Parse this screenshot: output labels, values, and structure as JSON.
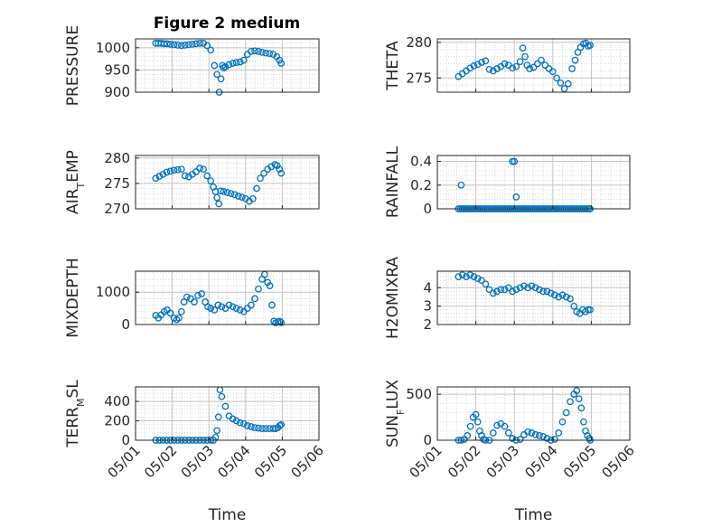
{
  "figure_title": "Figure 2 medium",
  "marker_color": "#0072bd",
  "chart_data": [
    {
      "type": "scatter",
      "ylabel": "PRESSURE",
      "ylabel_parts": [
        {
          "text": "PRESSURE",
          "sub": false
        }
      ],
      "xlabel": "",
      "xlim": [
        0,
        5
      ],
      "ylim": [
        900,
        1020
      ],
      "yticks": [
        900,
        950,
        1000
      ],
      "grid": true,
      "x": [
        0.55,
        0.62,
        0.7,
        0.78,
        0.86,
        0.95,
        1.05,
        1.15,
        1.25,
        1.35,
        1.45,
        1.55,
        1.65,
        1.75,
        1.85,
        1.95,
        2.05,
        2.15,
        2.22,
        2.28,
        2.33,
        2.37,
        2.4,
        2.45,
        2.55,
        2.65,
        2.75,
        2.85,
        2.95,
        3.05,
        3.15,
        3.25,
        3.35,
        3.45,
        3.55,
        3.65,
        3.75,
        3.85,
        3.92,
        3.97
      ],
      "y": [
        1010,
        1010,
        1010,
        1009,
        1009,
        1008,
        1007,
        1006,
        1005,
        1006,
        1007,
        1008,
        1009,
        1010,
        1010,
        1005,
        995,
        960,
        940,
        900,
        930,
        960,
        955,
        957,
        962,
        965,
        967,
        968,
        972,
        985,
        992,
        993,
        992,
        990,
        988,
        987,
        985,
        980,
        972,
        965
      ]
    },
    {
      "type": "scatter",
      "ylabel": "THETA",
      "ylabel_parts": [
        {
          "text": "THETA",
          "sub": false
        }
      ],
      "xlabel": "",
      "xlim": [
        0,
        5
      ],
      "ylim": [
        273,
        280.5
      ],
      "yticks": [
        275,
        280
      ],
      "grid": true,
      "x": [
        0.55,
        0.65,
        0.75,
        0.85,
        0.95,
        1.05,
        1.15,
        1.25,
        1.35,
        1.45,
        1.55,
        1.65,
        1.75,
        1.85,
        1.95,
        2.05,
        2.15,
        2.22,
        2.28,
        2.33,
        2.4,
        2.5,
        2.6,
        2.7,
        2.8,
        2.9,
        3.0,
        3.1,
        3.2,
        3.3,
        3.4,
        3.5,
        3.58,
        3.65,
        3.72,
        3.8,
        3.86,
        3.92,
        3.97
      ],
      "y": [
        275.2,
        275.6,
        276.0,
        276.4,
        276.7,
        276.9,
        277.2,
        277.4,
        276.2,
        276.0,
        276.3,
        276.6,
        277.0,
        276.8,
        276.4,
        276.6,
        277.3,
        279.2,
        278.0,
        276.8,
        276.3,
        276.5,
        277.0,
        277.5,
        276.8,
        276.3,
        275.9,
        275.0,
        274.3,
        273.5,
        274.2,
        276.3,
        277.5,
        278.6,
        279.3,
        279.8,
        279.9,
        279.5,
        279.6
      ]
    },
    {
      "type": "scatter",
      "ylabel": "AIR_TEMP",
      "ylabel_parts": [
        {
          "text": "AIR",
          "sub": false
        },
        {
          "text": "T",
          "sub": true
        },
        {
          "text": "EMP",
          "sub": false
        }
      ],
      "xlabel": "",
      "xlim": [
        0,
        5
      ],
      "ylim": [
        270,
        280.5
      ],
      "yticks": [
        270,
        275,
        280
      ],
      "grid": true,
      "x": [
        0.55,
        0.65,
        0.75,
        0.85,
        0.95,
        1.05,
        1.15,
        1.25,
        1.35,
        1.45,
        1.55,
        1.65,
        1.75,
        1.85,
        1.95,
        2.05,
        2.12,
        2.18,
        2.22,
        2.27,
        2.32,
        2.4,
        2.5,
        2.6,
        2.7,
        2.8,
        2.9,
        3.0,
        3.1,
        3.2,
        3.3,
        3.4,
        3.5,
        3.6,
        3.7,
        3.8,
        3.86,
        3.92,
        3.97
      ],
      "y": [
        276.0,
        276.4,
        276.8,
        277.2,
        277.4,
        277.6,
        277.7,
        277.8,
        276.5,
        276.3,
        276.8,
        277.3,
        278.0,
        277.8,
        276.5,
        275.5,
        274.3,
        273.4,
        272.2,
        271.0,
        273.5,
        273.4,
        273.2,
        273.0,
        272.8,
        272.5,
        272.3,
        272.0,
        271.5,
        272.0,
        274.0,
        276.0,
        277.0,
        277.8,
        278.3,
        278.7,
        278.5,
        277.8,
        277.0
      ]
    },
    {
      "type": "scatter",
      "ylabel": "RAINFALL",
      "ylabel_parts": [
        {
          "text": "RAINFALL",
          "sub": false
        }
      ],
      "xlabel": "",
      "xlim": [
        0,
        5
      ],
      "ylim": [
        0,
        0.45
      ],
      "yticks": [
        0,
        0.2,
        0.4
      ],
      "grid": true,
      "x": [
        0.55,
        0.6,
        0.65,
        0.7,
        0.75,
        0.8,
        0.85,
        0.9,
        0.95,
        1.0,
        1.05,
        1.1,
        1.15,
        1.2,
        1.25,
        1.3,
        1.35,
        1.4,
        1.45,
        1.5,
        1.55,
        1.6,
        1.65,
        1.7,
        1.75,
        1.8,
        1.85,
        1.9,
        1.95,
        2.0,
        2.05,
        2.1,
        2.15,
        2.2,
        2.25,
        2.3,
        2.35,
        2.4,
        2.45,
        2.5,
        2.55,
        2.6,
        2.65,
        2.7,
        2.75,
        2.8,
        2.85,
        2.9,
        2.95,
        3.0,
        3.05,
        3.1,
        3.15,
        3.2,
        3.25,
        3.3,
        3.35,
        3.4,
        3.45,
        3.5,
        3.55,
        3.6,
        3.65,
        3.7,
        3.75,
        3.8,
        3.85,
        3.9,
        3.95,
        3.97,
        0.62,
        1.95,
        2.0,
        2.05
      ],
      "y": [
        0,
        0,
        0,
        0,
        0,
        0,
        0,
        0,
        0,
        0,
        0,
        0,
        0,
        0,
        0,
        0,
        0,
        0,
        0,
        0,
        0,
        0,
        0,
        0,
        0,
        0,
        0,
        0,
        0,
        0,
        0,
        0,
        0,
        0,
        0,
        0,
        0,
        0,
        0,
        0,
        0,
        0,
        0,
        0,
        0,
        0,
        0,
        0,
        0,
        0,
        0,
        0,
        0,
        0,
        0,
        0,
        0,
        0,
        0,
        0,
        0,
        0,
        0,
        0,
        0,
        0,
        0,
        0,
        0,
        0,
        0.2,
        0.4,
        0.4,
        0.1
      ]
    },
    {
      "type": "scatter",
      "ylabel": "MIXDEPTH",
      "ylabel_parts": [
        {
          "text": "MIXDEPTH",
          "sub": false
        }
      ],
      "xlabel": "",
      "xlim": [
        0,
        5
      ],
      "ylim": [
        0,
        1650
      ],
      "yticks": [
        0,
        1000
      ],
      "grid": true,
      "x": [
        0.55,
        0.62,
        0.7,
        0.78,
        0.86,
        0.95,
        1.05,
        1.12,
        1.18,
        1.25,
        1.32,
        1.4,
        1.5,
        1.6,
        1.7,
        1.8,
        1.9,
        1.97,
        2.05,
        2.15,
        2.25,
        2.35,
        2.45,
        2.55,
        2.65,
        2.75,
        2.85,
        2.95,
        3.05,
        3.15,
        3.25,
        3.35,
        3.45,
        3.52,
        3.6,
        3.66,
        3.72,
        3.77,
        3.82,
        3.88,
        3.93,
        3.97
      ],
      "y": [
        280,
        200,
        300,
        400,
        450,
        350,
        200,
        150,
        200,
        400,
        700,
        850,
        800,
        700,
        900,
        950,
        700,
        550,
        500,
        450,
        600,
        550,
        500,
        600,
        550,
        500,
        450,
        400,
        500,
        600,
        800,
        1100,
        1400,
        1550,
        1300,
        1200,
        600,
        100,
        50,
        80,
        100,
        60
      ]
    },
    {
      "type": "scatter",
      "ylabel": "H2OMIXRA",
      "ylabel_parts": [
        {
          "text": "H2OMIXRA",
          "sub": false
        }
      ],
      "xlabel": "",
      "xlim": [
        0,
        5
      ],
      "ylim": [
        2,
        4.9
      ],
      "yticks": [
        2,
        3,
        4
      ],
      "grid": true,
      "x": [
        0.55,
        0.65,
        0.75,
        0.85,
        0.95,
        1.05,
        1.15,
        1.25,
        1.35,
        1.45,
        1.55,
        1.65,
        1.75,
        1.85,
        1.95,
        2.05,
        2.15,
        2.25,
        2.35,
        2.45,
        2.55,
        2.65,
        2.75,
        2.85,
        2.95,
        3.05,
        3.15,
        3.25,
        3.35,
        3.45,
        3.55,
        3.62,
        3.7,
        3.78,
        3.85,
        3.92,
        3.97
      ],
      "y": [
        4.6,
        4.7,
        4.6,
        4.7,
        4.6,
        4.5,
        4.4,
        4.2,
        3.9,
        3.7,
        3.8,
        3.9,
        3.9,
        4.0,
        3.8,
        3.9,
        4.0,
        4.1,
        4.0,
        4.1,
        4.0,
        3.9,
        3.8,
        3.8,
        3.7,
        3.6,
        3.5,
        3.6,
        3.5,
        3.4,
        3.0,
        2.7,
        2.6,
        2.8,
        2.7,
        2.8,
        2.8
      ]
    },
    {
      "type": "scatter",
      "ylabel": "TERR_MSL",
      "ylabel_parts": [
        {
          "text": "TERR",
          "sub": false
        },
        {
          "text": "M",
          "sub": true
        },
        {
          "text": "SL",
          "sub": false
        }
      ],
      "xlabel": "Time",
      "xlim": [
        0,
        5
      ],
      "ylim": [
        0,
        550
      ],
      "yticks": [
        0,
        200,
        400
      ],
      "grid": true,
      "x": [
        0.55,
        0.65,
        0.75,
        0.85,
        0.95,
        1.05,
        1.15,
        1.25,
        1.35,
        1.45,
        1.55,
        1.65,
        1.75,
        1.85,
        1.95,
        2.05,
        2.12,
        2.18,
        2.22,
        2.26,
        2.3,
        2.35,
        2.45,
        2.55,
        2.65,
        2.75,
        2.85,
        2.95,
        3.05,
        3.15,
        3.25,
        3.35,
        3.45,
        3.55,
        3.65,
        3.75,
        3.82,
        3.88,
        3.93,
        3.97
      ],
      "y": [
        0,
        0,
        0,
        0,
        0,
        0,
        0,
        0,
        0,
        0,
        0,
        0,
        0,
        0,
        0,
        0,
        0,
        30,
        100,
        240,
        520,
        450,
        350,
        250,
        220,
        200,
        180,
        170,
        150,
        140,
        130,
        125,
        120,
        120,
        120,
        120,
        120,
        130,
        150,
        160
      ]
    },
    {
      "type": "scatter",
      "ylabel": "SUN_FLUX",
      "ylabel_parts": [
        {
          "text": "SUN",
          "sub": false
        },
        {
          "text": "F",
          "sub": true
        },
        {
          "text": "LUX",
          "sub": false
        }
      ],
      "xlabel": "Time",
      "xlim": [
        0,
        5
      ],
      "ylim": [
        0,
        580
      ],
      "yticks": [
        0,
        500
      ],
      "grid": true,
      "x": [
        0.55,
        0.62,
        0.7,
        0.78,
        0.86,
        0.93,
        1.0,
        1.05,
        1.1,
        1.15,
        1.2,
        1.25,
        1.35,
        1.45,
        1.55,
        1.65,
        1.75,
        1.85,
        1.95,
        2.05,
        2.15,
        2.25,
        2.35,
        2.45,
        2.55,
        2.65,
        2.75,
        2.85,
        2.95,
        3.05,
        3.15,
        3.25,
        3.35,
        3.45,
        3.55,
        3.62,
        3.68,
        3.74,
        3.8,
        3.85,
        3.9,
        3.95,
        3.97
      ],
      "y": [
        0,
        0,
        10,
        50,
        150,
        250,
        280,
        200,
        100,
        50,
        10,
        0,
        0,
        80,
        160,
        180,
        150,
        80,
        20,
        0,
        10,
        60,
        90,
        80,
        60,
        50,
        40,
        20,
        0,
        10,
        80,
        200,
        300,
        420,
        500,
        540,
        450,
        350,
        200,
        100,
        50,
        20,
        0
      ]
    }
  ],
  "x_tick_labels": [
    "05/01",
    "05/02",
    "05/03",
    "05/04",
    "05/05",
    "05/06"
  ],
  "x_tick_values": [
    0,
    1,
    2,
    3,
    4,
    5
  ]
}
